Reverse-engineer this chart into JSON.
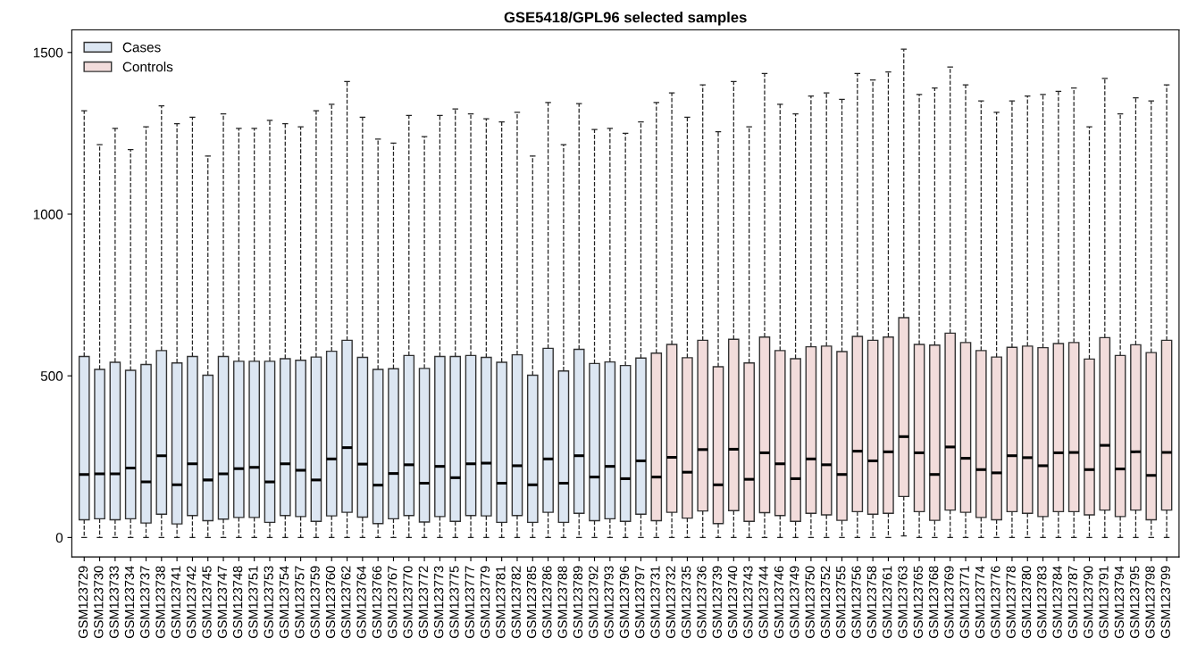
{
  "chart_data": {
    "type": "box",
    "title": "GSE5418/GPL96 selected samples",
    "categories": [
      "GSM123729",
      "GSM123730",
      "GSM123733",
      "GSM123734",
      "GSM123737",
      "GSM123738",
      "GSM123741",
      "GSM123742",
      "GSM123745",
      "GSM123747",
      "GSM123748",
      "GSM123751",
      "GSM123753",
      "GSM123754",
      "GSM123757",
      "GSM123759",
      "GSM123760",
      "GSM123762",
      "GSM123764",
      "GSM123766",
      "GSM123767",
      "GSM123770",
      "GSM123772",
      "GSM123773",
      "GSM123775",
      "GSM123777",
      "GSM123779",
      "GSM123781",
      "GSM123782",
      "GSM123785",
      "GSM123786",
      "GSM123788",
      "GSM123789",
      "GSM123792",
      "GSM123793",
      "GSM123796",
      "GSM123797",
      "GSM123731",
      "GSM123732",
      "GSM123735",
      "GSM123736",
      "GSM123739",
      "GSM123740",
      "GSM123743",
      "GSM123744",
      "GSM123746",
      "GSM123749",
      "GSM123750",
      "GSM123752",
      "GSM123755",
      "GSM123756",
      "GSM123758",
      "GSM123761",
      "GSM123763",
      "GSM123765",
      "GSM123768",
      "GSM123769",
      "GSM123771",
      "GSM123774",
      "GSM123776",
      "GSM123778",
      "GSM123780",
      "GSM123783",
      "GSM123784",
      "GSM123787",
      "GSM123790",
      "GSM123791",
      "GSM123794",
      "GSM123795",
      "GSM123798",
      "GSM123799"
    ],
    "ylim": [
      -60,
      1570
    ],
    "yticks": [
      0,
      500,
      1000,
      1500
    ],
    "grid": false,
    "legend": "top left",
    "line_style": "dashed",
    "series": [
      {
        "name": "Cases",
        "color": "#dce6f2",
        "boxes": [
          {
            "low": 0,
            "q1": 55,
            "median": 195,
            "q3": 560,
            "high": 1320
          },
          {
            "low": 0,
            "q1": 58,
            "median": 197,
            "q3": 520,
            "high": 1215
          },
          {
            "low": 0,
            "q1": 55,
            "median": 197,
            "q3": 542,
            "high": 1265
          },
          {
            "low": 0,
            "q1": 58,
            "median": 215,
            "q3": 517,
            "high": 1200
          },
          {
            "low": 0,
            "q1": 45,
            "median": 172,
            "q3": 535,
            "high": 1270
          },
          {
            "low": 0,
            "q1": 72,
            "median": 253,
            "q3": 578,
            "high": 1335
          },
          {
            "low": 0,
            "q1": 42,
            "median": 163,
            "q3": 540,
            "high": 1280
          },
          {
            "low": 0,
            "q1": 68,
            "median": 228,
            "q3": 560,
            "high": 1300
          },
          {
            "low": 0,
            "q1": 52,
            "median": 178,
            "q3": 502,
            "high": 1180
          },
          {
            "low": 0,
            "q1": 57,
            "median": 197,
            "q3": 560,
            "high": 1310
          },
          {
            "low": 0,
            "q1": 62,
            "median": 213,
            "q3": 545,
            "high": 1265
          },
          {
            "low": 0,
            "q1": 62,
            "median": 217,
            "q3": 545,
            "high": 1265
          },
          {
            "low": 0,
            "q1": 47,
            "median": 172,
            "q3": 545,
            "high": 1290
          },
          {
            "low": 0,
            "q1": 68,
            "median": 228,
            "q3": 553,
            "high": 1280
          },
          {
            "low": 0,
            "q1": 65,
            "median": 208,
            "q3": 548,
            "high": 1270
          },
          {
            "low": 0,
            "q1": 50,
            "median": 178,
            "q3": 558,
            "high": 1320
          },
          {
            "low": 0,
            "q1": 67,
            "median": 243,
            "q3": 576,
            "high": 1340
          },
          {
            "low": 0,
            "q1": 78,
            "median": 278,
            "q3": 610,
            "high": 1410
          },
          {
            "low": 0,
            "q1": 63,
            "median": 227,
            "q3": 557,
            "high": 1300
          },
          {
            "low": 0,
            "q1": 43,
            "median": 162,
            "q3": 520,
            "high": 1232
          },
          {
            "low": 0,
            "q1": 58,
            "median": 198,
            "q3": 522,
            "high": 1220
          },
          {
            "low": 0,
            "q1": 68,
            "median": 225,
            "q3": 563,
            "high": 1305
          },
          {
            "low": 0,
            "q1": 48,
            "median": 168,
            "q3": 523,
            "high": 1240
          },
          {
            "low": 0,
            "q1": 65,
            "median": 220,
            "q3": 560,
            "high": 1305
          },
          {
            "low": 0,
            "q1": 50,
            "median": 185,
            "q3": 560,
            "high": 1325
          },
          {
            "low": 0,
            "q1": 68,
            "median": 228,
            "q3": 563,
            "high": 1310
          },
          {
            "low": 0,
            "q1": 67,
            "median": 230,
            "q3": 557,
            "high": 1295
          },
          {
            "low": 0,
            "q1": 47,
            "median": 168,
            "q3": 542,
            "high": 1285
          },
          {
            "low": 0,
            "q1": 68,
            "median": 222,
            "q3": 565,
            "high": 1315
          },
          {
            "low": 0,
            "q1": 47,
            "median": 163,
            "q3": 502,
            "high": 1180
          },
          {
            "low": 0,
            "q1": 78,
            "median": 243,
            "q3": 585,
            "high": 1345
          },
          {
            "low": 0,
            "q1": 47,
            "median": 168,
            "q3": 515,
            "high": 1215
          },
          {
            "low": 0,
            "q1": 75,
            "median": 253,
            "q3": 582,
            "high": 1342
          },
          {
            "low": 0,
            "q1": 52,
            "median": 187,
            "q3": 538,
            "high": 1262
          },
          {
            "low": 0,
            "q1": 58,
            "median": 220,
            "q3": 543,
            "high": 1265
          },
          {
            "low": 0,
            "q1": 50,
            "median": 182,
            "q3": 532,
            "high": 1250
          },
          {
            "low": 0,
            "q1": 72,
            "median": 237,
            "q3": 555,
            "high": 1285
          },
          null,
          null,
          null,
          null,
          null,
          null,
          null,
          null,
          null,
          null,
          null,
          null,
          null,
          null,
          null,
          null,
          null,
          null,
          null,
          null,
          null,
          null,
          null,
          null,
          null,
          null,
          null,
          null,
          null,
          null,
          null,
          null,
          null,
          null
        ]
      },
      {
        "name": "Controls",
        "color": "#f2dcdb",
        "boxes": [
          null,
          null,
          null,
          null,
          null,
          null,
          null,
          null,
          null,
          null,
          null,
          null,
          null,
          null,
          null,
          null,
          null,
          null,
          null,
          null,
          null,
          null,
          null,
          null,
          null,
          null,
          null,
          null,
          null,
          null,
          null,
          null,
          null,
          null,
          null,
          null,
          null,
          {
            "low": 0,
            "q1": 52,
            "median": 187,
            "q3": 570,
            "high": 1345
          },
          {
            "low": 0,
            "q1": 78,
            "median": 248,
            "q3": 597,
            "high": 1375
          },
          {
            "low": 0,
            "q1": 60,
            "median": 202,
            "q3": 556,
            "high": 1300
          },
          {
            "low": 0,
            "q1": 82,
            "median": 272,
            "q3": 610,
            "high": 1400
          },
          {
            "low": 0,
            "q1": 43,
            "median": 163,
            "q3": 528,
            "high": 1255
          },
          {
            "low": 0,
            "q1": 83,
            "median": 273,
            "q3": 613,
            "high": 1410
          },
          {
            "low": 0,
            "q1": 50,
            "median": 180,
            "q3": 540,
            "high": 1270
          },
          {
            "low": 0,
            "q1": 77,
            "median": 262,
            "q3": 620,
            "high": 1435
          },
          {
            "low": 0,
            "q1": 68,
            "median": 228,
            "q3": 578,
            "high": 1340
          },
          {
            "low": 0,
            "q1": 50,
            "median": 182,
            "q3": 553,
            "high": 1310
          },
          {
            "low": 0,
            "q1": 75,
            "median": 243,
            "q3": 590,
            "high": 1365
          },
          {
            "low": 0,
            "q1": 70,
            "median": 225,
            "q3": 592,
            "high": 1375
          },
          {
            "low": 0,
            "q1": 53,
            "median": 195,
            "q3": 575,
            "high": 1355
          },
          {
            "low": 0,
            "q1": 80,
            "median": 267,
            "q3": 622,
            "high": 1435
          },
          {
            "low": 0,
            "q1": 72,
            "median": 237,
            "q3": 610,
            "high": 1415
          },
          {
            "low": 0,
            "q1": 75,
            "median": 265,
            "q3": 620,
            "high": 1440
          },
          {
            "low": 5,
            "q1": 127,
            "median": 312,
            "q3": 680,
            "high": 1510
          },
          {
            "low": 0,
            "q1": 80,
            "median": 262,
            "q3": 597,
            "high": 1370
          },
          {
            "low": 0,
            "q1": 53,
            "median": 195,
            "q3": 595,
            "high": 1390
          },
          {
            "low": 0,
            "q1": 85,
            "median": 280,
            "q3": 632,
            "high": 1455
          },
          {
            "low": 0,
            "q1": 78,
            "median": 245,
            "q3": 603,
            "high": 1400
          },
          {
            "low": 0,
            "q1": 62,
            "median": 210,
            "q3": 578,
            "high": 1350
          },
          {
            "low": 0,
            "q1": 55,
            "median": 200,
            "q3": 558,
            "high": 1315
          },
          {
            "low": 0,
            "q1": 80,
            "median": 253,
            "q3": 588,
            "high": 1350
          },
          {
            "low": 0,
            "q1": 75,
            "median": 247,
            "q3": 592,
            "high": 1365
          },
          {
            "low": 0,
            "q1": 65,
            "median": 222,
            "q3": 587,
            "high": 1370
          },
          {
            "low": 0,
            "q1": 80,
            "median": 262,
            "q3": 600,
            "high": 1380
          },
          {
            "low": 0,
            "q1": 80,
            "median": 263,
            "q3": 603,
            "high": 1390
          },
          {
            "low": 0,
            "q1": 70,
            "median": 210,
            "q3": 552,
            "high": 1270
          },
          {
            "low": 0,
            "q1": 85,
            "median": 285,
            "q3": 618,
            "high": 1420
          },
          {
            "low": 0,
            "q1": 65,
            "median": 212,
            "q3": 563,
            "high": 1310
          },
          {
            "low": 0,
            "q1": 85,
            "median": 265,
            "q3": 596,
            "high": 1360
          },
          {
            "low": 0,
            "q1": 55,
            "median": 192,
            "q3": 572,
            "high": 1350
          },
          {
            "low": 0,
            "q1": 85,
            "median": 263,
            "q3": 610,
            "high": 1400
          }
        ]
      }
    ]
  }
}
